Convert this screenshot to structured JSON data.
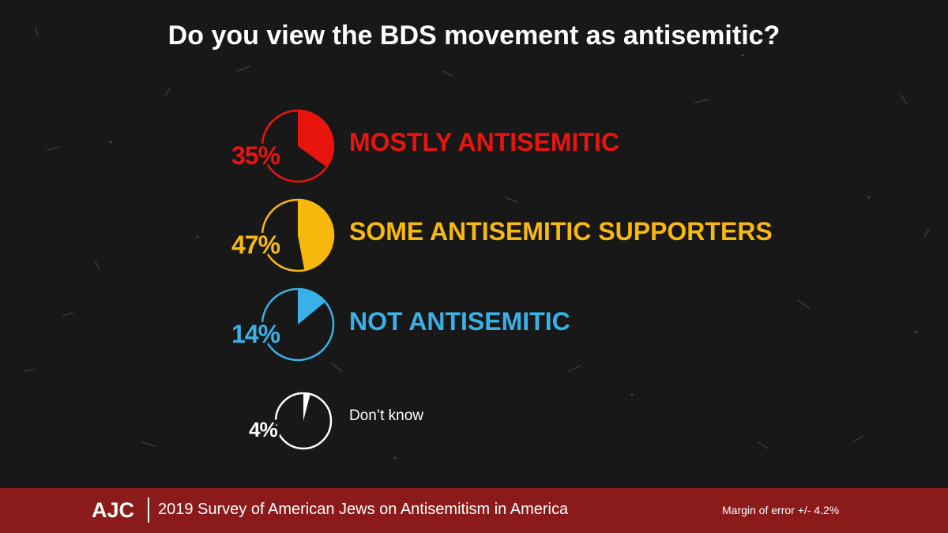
{
  "title": "Do you view the BDS movement as antisemitic?",
  "chart_data": {
    "type": "pie",
    "title": "Do you view the BDS movement as antisemitic?",
    "series": [
      {
        "label": "MOSTLY ANTISEMITIC",
        "value": 35,
        "display": "35%",
        "color": "#e8150f"
      },
      {
        "label": "SOME ANTISEMITIC SUPPORTERS",
        "value": 47,
        "display": "47%",
        "color": "#f8b90f"
      },
      {
        "label": "NOT ANTISEMITIC",
        "value": 14,
        "display": "14%",
        "color": "#3ab1e6"
      },
      {
        "label": "Don’t know",
        "value": 4,
        "display": "4%",
        "color": "#ffffff"
      }
    ]
  },
  "footer": {
    "logo": "AJC",
    "survey": "2019 Survey of American Jews on Antisemitism in America",
    "margin": "Margin of error +/- 4.2%"
  }
}
